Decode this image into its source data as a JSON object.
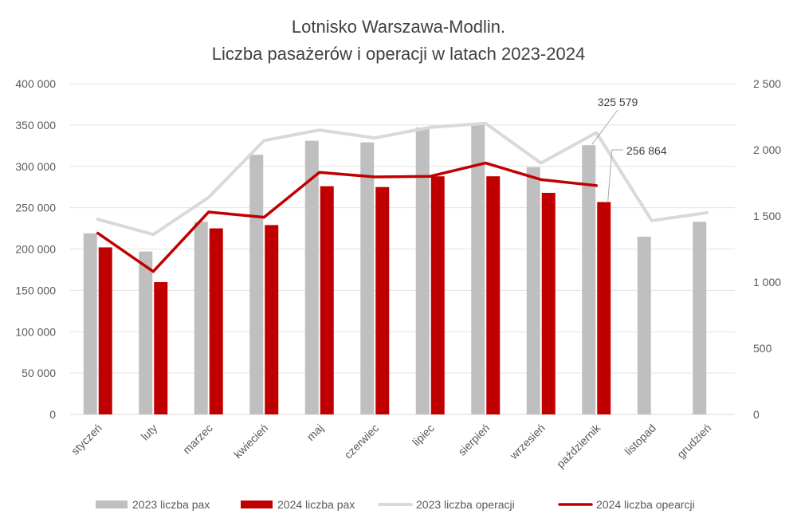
{
  "chart_data": {
    "type": "bar",
    "title": [
      "Lotnisko Warszawa-Modlin.",
      "Liczba pasażerów i operacji w latach 2023-2024"
    ],
    "categories": [
      "styczeń",
      "luty",
      "marzec",
      "kwiecień",
      "maj",
      "czerwiec",
      "lipiec",
      "sierpień",
      "wrzesień",
      "październik",
      "listopad",
      "grudzień"
    ],
    "y_left": {
      "min": 0,
      "max": 400000,
      "step": 50000,
      "tick_labels": [
        "0",
        "50 000",
        "100 000",
        "150 000",
        "200 000",
        "250 000",
        "300 000",
        "350 000",
        "400 000"
      ]
    },
    "y_right": {
      "min": 0,
      "max": 2500,
      "step": 500,
      "tick_labels": [
        "0",
        "500",
        "1 000",
        "1 500",
        "2 000",
        "2 500"
      ]
    },
    "grid": "horizontal",
    "legend_position": "bottom",
    "series": [
      {
        "name": "2023 liczba pax",
        "kind": "bar",
        "axis": "left",
        "color": "#bfbfbf",
        "values": [
          219000,
          197000,
          233000,
          314000,
          331000,
          329000,
          347000,
          351000,
          299000,
          325579,
          215000,
          233000
        ]
      },
      {
        "name": "2024 liczba pax",
        "kind": "bar",
        "axis": "left",
        "color": "#c00000",
        "values": [
          202000,
          160000,
          225000,
          229000,
          276000,
          275000,
          288000,
          288000,
          268000,
          256864,
          null,
          null
        ]
      },
      {
        "name": "2023 liczba operacji",
        "kind": "line",
        "axis": "right",
        "color": "#d9d9d9",
        "values": [
          1475,
          1360,
          1640,
          2070,
          2150,
          2090,
          2170,
          2200,
          1900,
          2130,
          1465,
          1525
        ]
      },
      {
        "name": "2024 liczba opearcji",
        "kind": "line",
        "axis": "right",
        "color": "#c00000",
        "values": [
          1370,
          1080,
          1530,
          1490,
          1830,
          1795,
          1800,
          1900,
          1775,
          1730,
          null,
          null
        ]
      }
    ],
    "annotations": [
      {
        "text": "325 579",
        "series": "2023 liczba pax",
        "category": "październik"
      },
      {
        "text": "256 864",
        "series": "2024 liczba pax",
        "category": "październik"
      }
    ]
  }
}
